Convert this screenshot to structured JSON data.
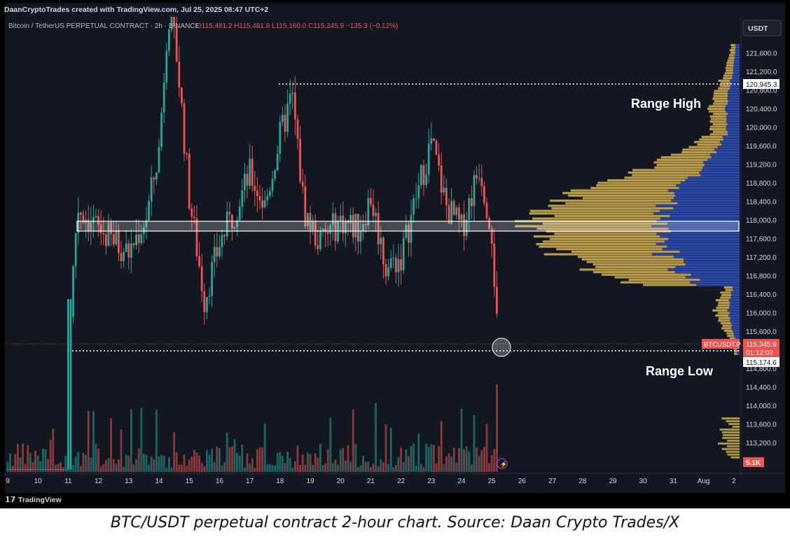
{
  "header": {
    "byline": "DaanCryptoTrades created with TradingView.com, Jul 25, 2025 08:47 UTC+2"
  },
  "legend": {
    "symbol": "Bitcoin / TetherUS PERPETUAL CONTRACT · 2h · BINANCE",
    "ohlc": "O115,481.2 H115,481.8 L115,160.0 C115,345.9 −135.3 (−0.12%)"
  },
  "currency_button": "USDT",
  "annotations": {
    "range_high": "Range High",
    "range_low": "Range Low"
  },
  "price_tags": {
    "range_high_price": "120,945.3",
    "range_low_price": "115,174.6",
    "ticker": "BTCUSDT.P",
    "last_price": "115,345.9",
    "countdown": "01:12:02",
    "volume": "5.1K"
  },
  "footer": {
    "brand": "TradingView"
  },
  "caption": "BTC/USDT perpetual contract 2-hour chart. Source: Daan Crypto Trades/X",
  "colors": {
    "background": "#131722",
    "up": "#26a69a",
    "down": "#ef5350",
    "profile_gold": "#c9a84c",
    "profile_blue": "#2b4bb0",
    "text_light": "#d1d4dc"
  },
  "chart_data": {
    "type": "candlestick",
    "timeframe": "2h",
    "y_ticks": [
      "121,600.0",
      "121,200.0",
      "120,800.0",
      "120,400.0",
      "120,000.0",
      "119,600.0",
      "119,200.0",
      "118,800.0",
      "118,400.0",
      "118,000.0",
      "117,600.0",
      "117,200.0",
      "116,800.0",
      "116,400.0",
      "116,000.0",
      "115,600.0",
      "114,800.0",
      "114,400.0",
      "114,000.0",
      "113,600.0",
      "113,200.0"
    ],
    "y_tick_values": [
      121600,
      121200,
      120800,
      120400,
      120000,
      119600,
      119200,
      118800,
      118400,
      118000,
      117600,
      117200,
      116800,
      116400,
      116000,
      115600,
      114800,
      114400,
      114000,
      113600,
      113200
    ],
    "x_ticks": [
      "9",
      "10",
      "11",
      "12",
      "13",
      "14",
      "15",
      "16",
      "17",
      "18",
      "19",
      "20",
      "21",
      "22",
      "23",
      "24",
      "25",
      "26",
      "27",
      "28",
      "29",
      "30",
      "31",
      "Aug",
      "2"
    ],
    "last_price": 115345.9,
    "range_high": 120945.3,
    "range_low": 115174.6,
    "range_value_area": [
      117740,
      117960
    ],
    "daily_path": [
      {
        "day": 11.0,
        "price": 115200
      },
      {
        "day": 11.3,
        "price": 118300
      },
      {
        "day": 12.0,
        "price": 117800
      },
      {
        "day": 13.0,
        "price": 117300
      },
      {
        "day": 13.6,
        "price": 118100
      },
      {
        "day": 14.0,
        "price": 119500
      },
      {
        "day": 14.3,
        "price": 122500
      },
      {
        "day": 14.6,
        "price": 121500
      },
      {
        "day": 15.0,
        "price": 118500
      },
      {
        "day": 15.5,
        "price": 116300
      },
      {
        "day": 16.0,
        "price": 117500
      },
      {
        "day": 16.5,
        "price": 118200
      },
      {
        "day": 17.0,
        "price": 119000
      },
      {
        "day": 17.5,
        "price": 118300
      },
      {
        "day": 18.0,
        "price": 119800
      },
      {
        "day": 18.4,
        "price": 120700
      },
      {
        "day": 18.8,
        "price": 118200
      },
      {
        "day": 19.3,
        "price": 117500
      },
      {
        "day": 20.0,
        "price": 118000
      },
      {
        "day": 20.6,
        "price": 117800
      },
      {
        "day": 21.0,
        "price": 118500
      },
      {
        "day": 21.5,
        "price": 117000
      },
      {
        "day": 22.0,
        "price": 117200
      },
      {
        "day": 22.5,
        "price": 118500
      },
      {
        "day": 23.0,
        "price": 119700
      },
      {
        "day": 23.5,
        "price": 118300
      },
      {
        "day": 24.0,
        "price": 117800
      },
      {
        "day": 24.6,
        "price": 119200
      },
      {
        "day": 25.0,
        "price": 117800
      },
      {
        "day": 25.2,
        "price": 115345.9
      }
    ],
    "volume_axis_max": "5.1K"
  }
}
